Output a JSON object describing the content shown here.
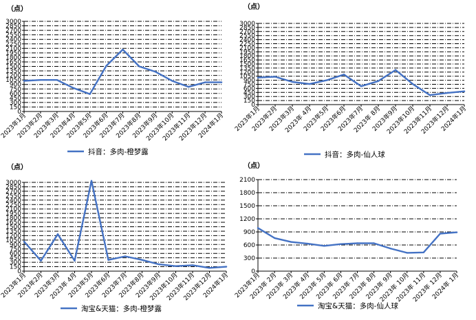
{
  "chart_data": [
    {
      "type": "line",
      "unit_label": "（点）",
      "categories": [
        "2023年1月",
        "2023年2月",
        "2023年3月",
        "2023年4月",
        "2023年5月",
        "2023年6月",
        "2023年7月",
        "2023年8月",
        "2023年9月",
        "2023年10月",
        "2023年11月",
        "2023年12月",
        "2024年1月"
      ],
      "series": [
        {
          "name": "抖音：多肉-橙梦露",
          "values": [
            1020,
            1050,
            1050,
            780,
            580,
            1520,
            2060,
            1500,
            1320,
            1020,
            820,
            970,
            970
          ]
        }
      ],
      "ylim": [
        0,
        3000
      ],
      "yticks": [
        0,
        150,
        300,
        450,
        600,
        750,
        900,
        1050,
        1200,
        1350,
        1500,
        1650,
        1800,
        1950,
        2100,
        2250,
        2400,
        2550,
        2700,
        2850,
        3000
      ],
      "grid": true,
      "legend": "bottom",
      "color": "#4472C4"
    },
    {
      "type": "line",
      "unit_label": "（点）",
      "categories": [
        "2023年1月",
        "2023年2月",
        "2023年3月",
        "2023年 4月",
        "2023年5月",
        "2023年6月",
        "2023年7月",
        "2023年 8月",
        "2023年9月",
        "2023年10月",
        "2023年11月",
        "2023年12月",
        "2024年1月"
      ],
      "series": [
        {
          "name": "抖音：多肉-仙人球",
          "values": [
            1000,
            1030,
            840,
            760,
            900,
            1110,
            680,
            870,
            1280,
            760,
            350,
            430,
            490
          ]
        }
      ],
      "ylim": [
        0,
        3000
      ],
      "yticks": [
        0,
        150,
        300,
        450,
        600,
        750,
        900,
        1050,
        1200,
        1350,
        1500,
        1650,
        1800,
        1950,
        2100,
        2250,
        2400,
        2550,
        2700,
        2850,
        3000
      ],
      "grid": true,
      "legend": "bottom",
      "color": "#4472C4"
    },
    {
      "type": "line",
      "unit_label": "（点）",
      "categories": [
        "2023年1月",
        "2023年2月",
        "2023年3月",
        "2023年 4月",
        "2023年5月",
        "2023年6月",
        "2023年7月",
        "2023年8月",
        "2023年9月",
        "2023年10月",
        "2023年11月",
        "2023年12月",
        "2024年1月"
      ],
      "series": [
        {
          "name": "淘宝&天猫：多肉-橙梦露",
          "values": [
            1000,
            350,
            1250,
            350,
            3050,
            380,
            500,
            380,
            230,
            170,
            200,
            110,
            150
          ]
        }
      ],
      "ylim": [
        0,
        3000
      ],
      "yticks": [
        0,
        150,
        300,
        450,
        600,
        750,
        900,
        1050,
        1200,
        1350,
        1500,
        1650,
        1800,
        1950,
        2100,
        2250,
        2400,
        2550,
        2700,
        2850,
        3000
      ],
      "grid": true,
      "legend": "bottom",
      "color": "#4472C4"
    },
    {
      "type": "line",
      "unit_label": "（点）",
      "categories": [
        "2023年1月",
        "2023年 2月",
        "2023年 3月",
        "2023年 4月",
        "2023年 5月",
        "2023年 6月",
        "2023年 7月",
        "2023年 8月",
        "2023年 9月",
        "2023年 10月",
        "2023年 11月",
        "2023年 12月",
        "2024年 1月"
      ],
      "series": [
        {
          "name": "淘宝&天猫：多肉-仙人球",
          "values": [
            990,
            760,
            670,
            630,
            580,
            620,
            640,
            640,
            520,
            420,
            430,
            860,
            890
          ]
        }
      ],
      "ylim": [
        0,
        2100
      ],
      "yticks": [
        0,
        300,
        600,
        900,
        1200,
        1500,
        1800,
        2100
      ],
      "grid": true,
      "legend": "bottom",
      "color": "#4472C4"
    }
  ]
}
